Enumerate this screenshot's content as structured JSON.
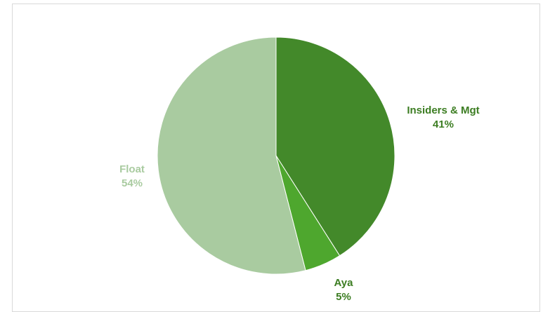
{
  "chart_data": {
    "type": "pie",
    "title": "",
    "slices": [
      {
        "name": "Insiders & Mgt",
        "value": 41,
        "label": "41%",
        "color": "#43892a"
      },
      {
        "name": "Aya",
        "value": 5,
        "label": "5%",
        "color": "#4ea72e"
      },
      {
        "name": "Float",
        "value": 54,
        "label": "54%",
        "color": "#a9cba0"
      }
    ],
    "start_angle": "12 o'clock",
    "direction": "clockwise",
    "legend": "none",
    "label_colors": {
      "Insiders & Mgt": "#3c7d22",
      "Aya": "#3c7d22",
      "Float": "#a9cba0"
    }
  }
}
